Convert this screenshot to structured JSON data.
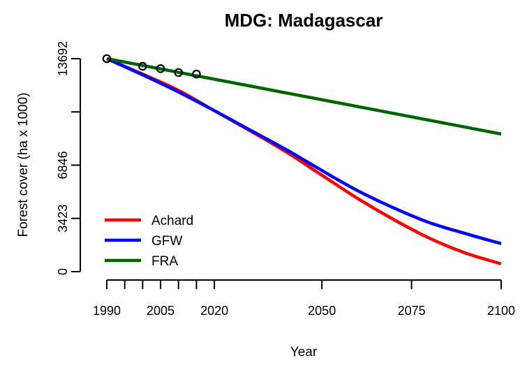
{
  "chart_data": {
    "type": "line",
    "title": "MDG: Madagascar",
    "xlabel": "Year",
    "ylabel": "Forest cover (ha x 1000)",
    "xlim": [
      1990,
      2100
    ],
    "ylim": [
      0,
      13692
    ],
    "x_ticks": [
      1990,
      1995,
      2000,
      2005,
      2010,
      2015,
      2020,
      2050,
      2075,
      2100
    ],
    "x_tick_labels": [
      {
        "value": 1990,
        "label": "1990"
      },
      {
        "value": 2005,
        "label": "2005"
      },
      {
        "value": 2020,
        "label": "2020"
      },
      {
        "value": 2050,
        "label": "2050"
      },
      {
        "value": 2075,
        "label": "2075"
      },
      {
        "value": 2100,
        "label": "2100"
      }
    ],
    "y_ticks": [
      0,
      3423,
      6846,
      10269,
      13692
    ],
    "y_tick_labels": [
      {
        "value": 0,
        "label": "0"
      },
      {
        "value": 3423,
        "label": "3423"
      },
      {
        "value": 6846,
        "label": "6846"
      },
      {
        "value": 13692,
        "label": "13692"
      }
    ],
    "grid": false,
    "legend": {
      "position": "bottom-left",
      "entries": [
        "Achard",
        "GFW",
        "FRA"
      ]
    },
    "series": [
      {
        "name": "Achard",
        "color": "#ff0000",
        "x": [
          1990,
          2000,
          2010,
          2020,
          2030,
          2040,
          2050,
          2060,
          2070,
          2080,
          2090,
          2100
        ],
        "values": [
          13692,
          12700,
          11650,
          10350,
          9050,
          7700,
          6200,
          4700,
          3350,
          2150,
          1200,
          500
        ]
      },
      {
        "name": "GFW",
        "color": "#0000ff",
        "x": [
          1990,
          2000,
          2010,
          2020,
          2030,
          2040,
          2050,
          2060,
          2070,
          2080,
          2090,
          2100
        ],
        "values": [
          13692,
          12650,
          11550,
          10350,
          9100,
          7850,
          6500,
          5200,
          4100,
          3150,
          2450,
          1800
        ]
      },
      {
        "name": "FRA",
        "color": "#006400",
        "x": [
          1990,
          2100
        ],
        "values": [
          13692,
          8850
        ]
      }
    ],
    "observed_points": {
      "x": [
        1990,
        2000,
        2005,
        2010,
        2015
      ],
      "values": [
        13692,
        13200,
        13050,
        12800,
        12700
      ]
    }
  }
}
